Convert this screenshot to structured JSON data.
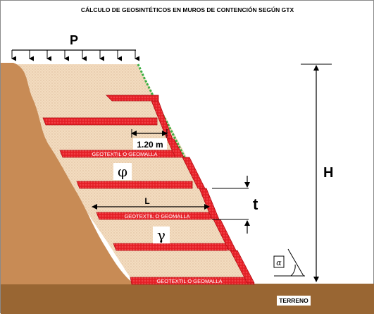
{
  "window": {
    "title": "CÁLCULO DE GEOSINTÉTICOS EN MUROS DE CONTENCIÓN SEGÚN GTX"
  },
  "diagram": {
    "load_label": "P",
    "spacing_label": "1.20 m",
    "reinforcement_label": "GEOTEXTIL O GEOMALLA",
    "friction_angle_symbol": "φ",
    "length_label": "L",
    "layer_thickness_label": "t",
    "unit_weight_symbol": "γ",
    "height_label": "H",
    "angle_symbol": "α",
    "ground_label": "TERRENO"
  },
  "colors": {
    "reinforcement": "#e8232a",
    "fill": "#f3dcc0",
    "slope": "#c88b55",
    "ground": "#996633",
    "vegetation": "#3cb043"
  }
}
